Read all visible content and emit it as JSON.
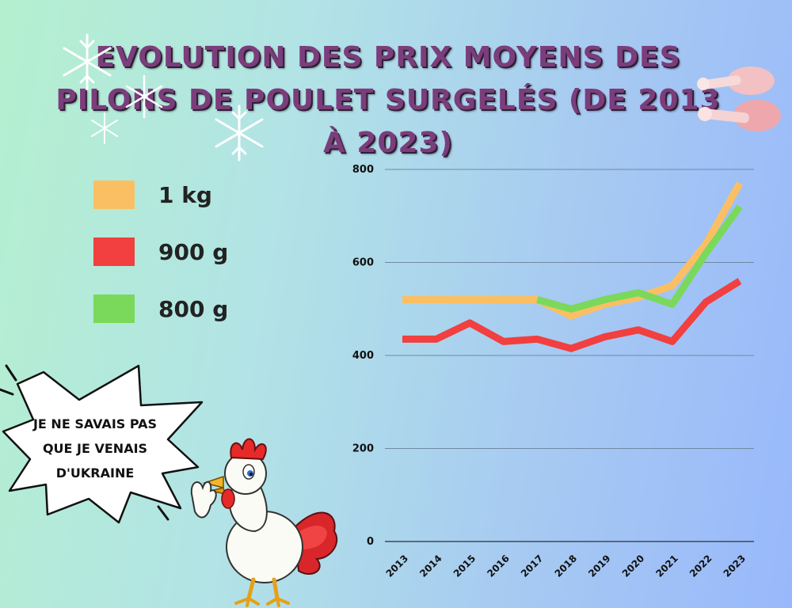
{
  "title": "EVOLUTION DES PRIX MOYENS DES PILONS DE POULET SURGELÉS (DE 2013 À 2023)",
  "speech_bubble": "JE NE SAVAIS PAS QUE JE VENAIS D'UKRAINE",
  "decorations": [
    "snowflake-icon",
    "chicken-drumstick-icon",
    "rooster-illustration",
    "speech-bubble"
  ],
  "chart_data": {
    "type": "line",
    "title": "EVOLUTION DES PRIX MOYENS DES PILONS DE POULET SURGELÉS (DE 2013 À 2023)",
    "x": [
      "2013",
      "2014",
      "2015",
      "2016",
      "2017",
      "2018",
      "2019",
      "2020",
      "2021",
      "2022",
      "2023"
    ],
    "yticks": [
      "0",
      "200",
      "400",
      "600",
      "800"
    ],
    "ylim": [
      0,
      800
    ],
    "grid": true,
    "legend_position": "left",
    "series": [
      {
        "name": "1 kg",
        "color": "#fbbf63",
        "values": [
          520,
          520,
          520,
          520,
          520,
          485,
          510,
          525,
          550,
          640,
          770
        ]
      },
      {
        "name": "900 g",
        "color": "#f23f3f",
        "values": [
          435,
          435,
          470,
          430,
          435,
          415,
          440,
          455,
          430,
          515,
          560
        ]
      },
      {
        "name": "800 g",
        "color": "#7ad95a",
        "values": [
          null,
          null,
          null,
          null,
          520,
          500,
          520,
          535,
          510,
          620,
          720
        ]
      }
    ]
  }
}
